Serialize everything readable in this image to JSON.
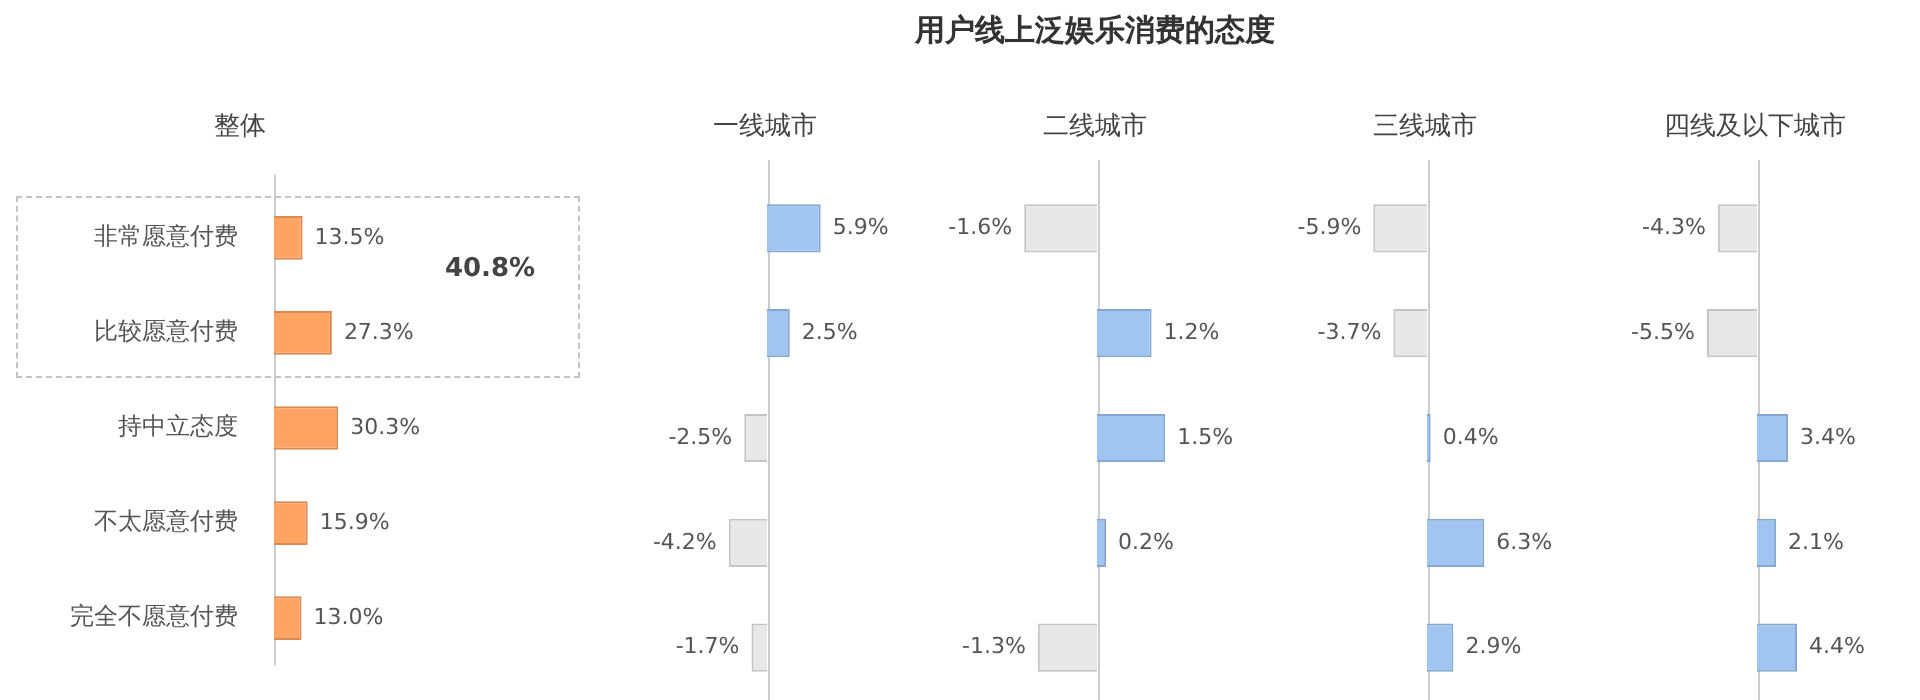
{
  "chart_data": [
    {
      "type": "bar",
      "orientation": "horizontal",
      "subtitle": "整体",
      "categories": [
        "非常愿意付费",
        "比较愿意付费",
        "持中立态度",
        "不太愿意付费",
        "完全不愿意付费"
      ],
      "values": [
        13.5,
        27.3,
        30.3,
        15.9,
        13.0
      ],
      "color": "#ffa462",
      "value_labels": [
        "13.5%",
        "27.3%",
        "30.3%",
        "15.9%",
        "13.0%"
      ],
      "tick_labels": "y",
      "annotations": [
        "40.8%"
      ]
    },
    {
      "type": "bar",
      "orientation": "horizontal",
      "subtitle": "一线城市",
      "categories": [
        null,
        null,
        null,
        null,
        null
      ],
      "values": [
        5.9,
        2.5,
        -2.5,
        -4.2,
        -1.7
      ],
      "colors": [
        "#9fc5f0",
        "#9fc5f0",
        "#e8e8e8",
        "#e8e8e8",
        "#e8e8e8"
      ],
      "value_labels": [
        "5.9%",
        "2.5%",
        "-2.5%",
        "-4.2%",
        "-1.7%"
      ],
      "tick_labels": false
    },
    {
      "type": "bar",
      "orientation": "horizontal",
      "title": "用户线上泛娱乐消费的态度",
      "subtitle": "二线城市",
      "categories": [
        null,
        null,
        null,
        null,
        null
      ],
      "values": [
        -1.6,
        1.2,
        1.5,
        0.2,
        -1.3
      ],
      "colors": [
        "#e8e8e8",
        "#9fc5f0",
        "#9fc5f0",
        "#9fc5f0",
        "#e8e8e8"
      ],
      "value_labels": [
        "-1.6%",
        "1.2%",
        "1.5%",
        "0.2%",
        "-1.3%"
      ],
      "tick_labels": false
    },
    {
      "type": "bar",
      "orientation": "horizontal",
      "subtitle": "三线城市",
      "categories": [
        null,
        null,
        null,
        null,
        null
      ],
      "values": [
        -5.9,
        -3.7,
        0.4,
        6.3,
        2.9
      ],
      "colors": [
        "#e8e8e8",
        "#e8e8e8",
        "#9fc5f0",
        "#9fc5f0",
        "#9fc5f0"
      ],
      "value_labels": [
        "-5.9%",
        "-3.7%",
        "0.4%",
        "6.3%",
        "2.9%"
      ],
      "tick_labels": false
    },
    {
      "type": "bar",
      "orientation": "horizontal",
      "subtitle": "四线及以下城市",
      "categories": [
        null,
        null,
        null,
        null,
        null
      ],
      "values": [
        -4.3,
        -5.5,
        3.4,
        2.1,
        4.4
      ],
      "colors": [
        "#e8e8e8",
        "#e8e8e8",
        "#9fc5f0",
        "#9fc5f0",
        "#9fc5f0"
      ],
      "value_labels": [
        "-4.3%",
        "-5.5%",
        "3.4%",
        "2.1%",
        "4.4%"
      ],
      "tick_labels": false
    }
  ]
}
